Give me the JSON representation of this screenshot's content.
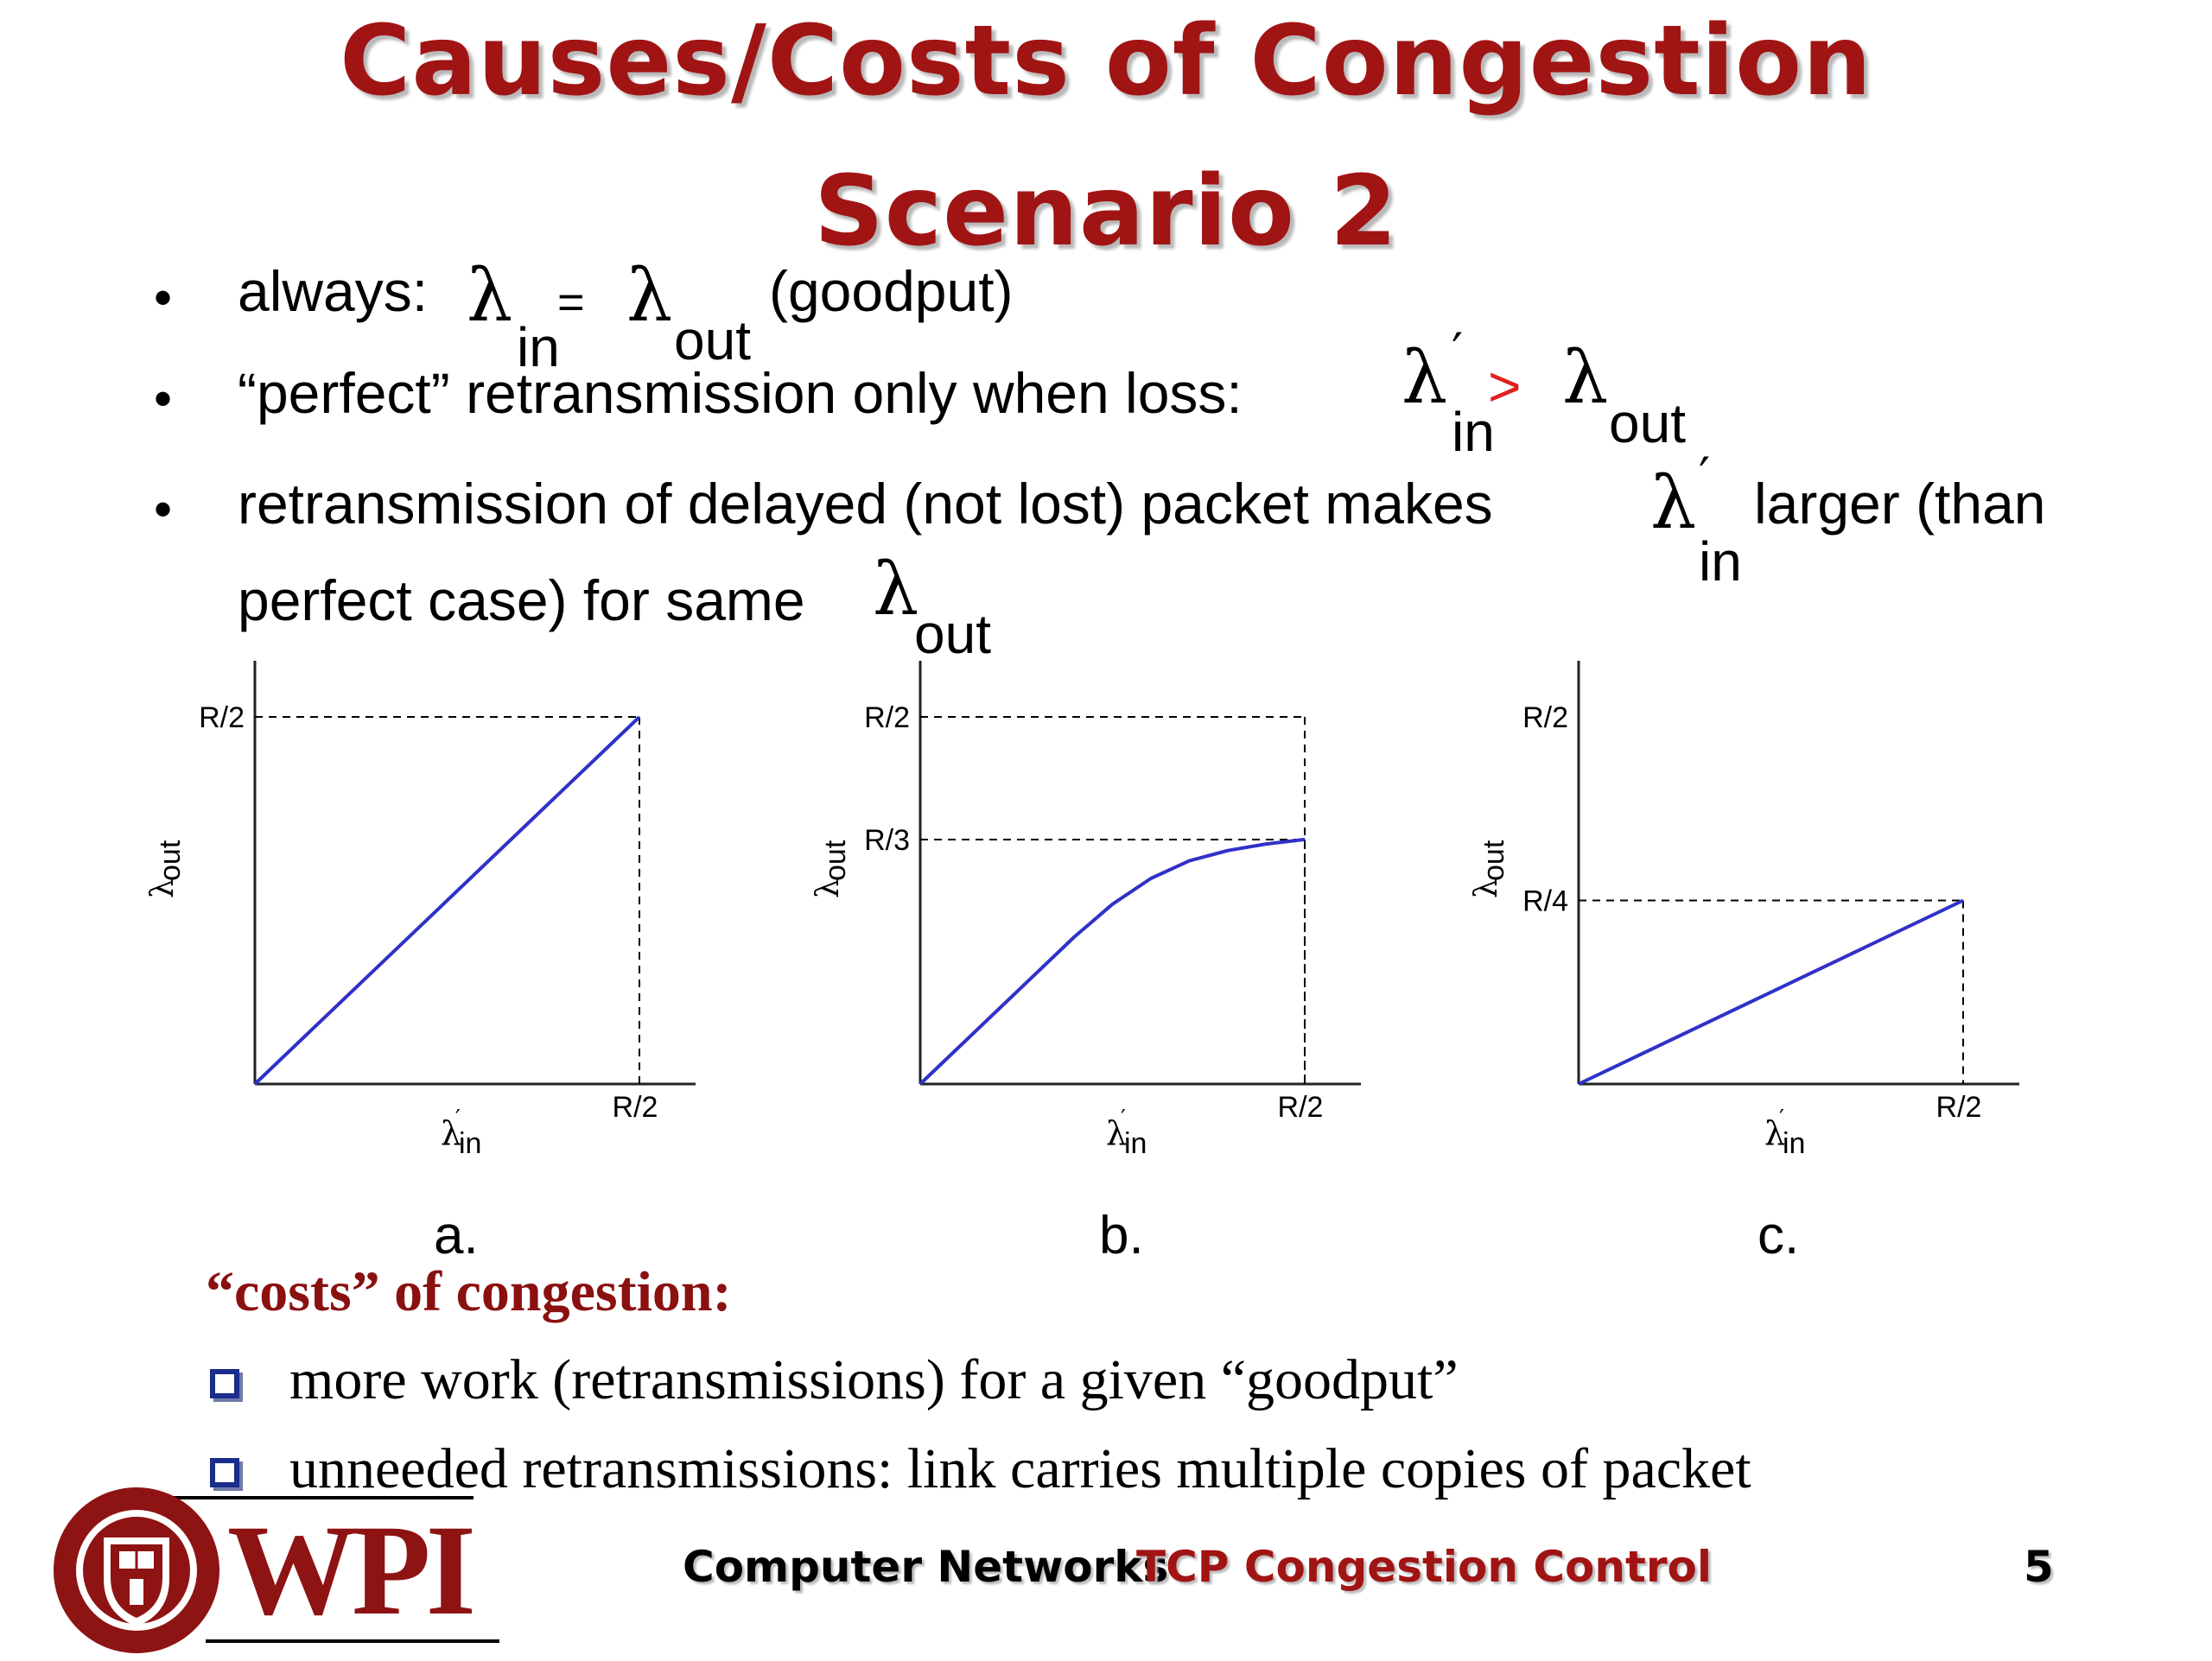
{
  "slide": {
    "title_line1": "Causes/Costs of Congestion",
    "title_line2": "Scenario 2",
    "bullets": {
      "b1": {
        "prefix": "always:",
        "eq": "=",
        "suffix": "(goodput)"
      },
      "b2": {
        "text": "“perfect” retransmission only when loss:",
        "gt": ">"
      },
      "b3": {
        "line1a": "retransmission of delayed (not lost) packet makes",
        "line1b": "larger (than",
        "line2": "perfect case) for same"
      }
    },
    "symbols": {
      "lambda": "λ",
      "prime": "′",
      "in": "in",
      "out": "out"
    },
    "panel_labels": [
      "a.",
      "b.",
      "c."
    ],
    "costs": {
      "heading": "“costs” of congestion:",
      "items": [
        "more work (retransmissions) for a given “goodput”",
        "unneeded retransmissions: link carries multiple copies of packet"
      ]
    },
    "footer": {
      "course": "Computer Networks",
      "topic": "TCP Congestion Control",
      "page": "5",
      "logo_text": "WPI",
      "seal_text": "WORCESTER POLYTECHNIC INSTITUTE 1865"
    },
    "colors": {
      "title": "#a11414",
      "curve": "#3131c8",
      "accent_red": "#e02020",
      "costs_heading": "#8b1010",
      "box": "#1a2c8c"
    }
  },
  "chart_data": [
    {
      "type": "line",
      "title": "a.",
      "xlabel": "λ′in",
      "ylabel": "λout",
      "x_ticks": [
        "R/2"
      ],
      "y_ticks": [
        "R/2"
      ],
      "x": [
        0,
        0.5
      ],
      "y": [
        0,
        0.5
      ],
      "xlim": [
        0,
        0.5
      ],
      "ylim": [
        0,
        0.5
      ],
      "guides": [
        {
          "x": 0.5,
          "y": 0.5
        }
      ]
    },
    {
      "type": "line",
      "title": "b.",
      "xlabel": "λ′in",
      "ylabel": "λout",
      "x_ticks": [
        "R/2"
      ],
      "y_ticks": [
        "R/2",
        "R/3"
      ],
      "x": [
        0,
        0.1,
        0.2,
        0.25,
        0.3,
        0.35,
        0.4,
        0.45,
        0.5
      ],
      "y": [
        0,
        0.1,
        0.2,
        0.245,
        0.28,
        0.304,
        0.318,
        0.327,
        0.333
      ],
      "xlim": [
        0,
        0.5
      ],
      "ylim": [
        0,
        0.5
      ],
      "guides": [
        {
          "x": 0.5,
          "y": 0.5
        },
        {
          "x": 0.5,
          "y": 0.333
        }
      ]
    },
    {
      "type": "line",
      "title": "c.",
      "xlabel": "λ′in",
      "ylabel": "λout",
      "x_ticks": [
        "R/2"
      ],
      "y_ticks": [
        "R/2",
        "R/4"
      ],
      "x": [
        0,
        0.5
      ],
      "y": [
        0,
        0.25
      ],
      "xlim": [
        0,
        0.5
      ],
      "ylim": [
        0,
        0.5
      ],
      "guides": [
        {
          "x": 0.5,
          "y": 0.25
        }
      ]
    }
  ]
}
